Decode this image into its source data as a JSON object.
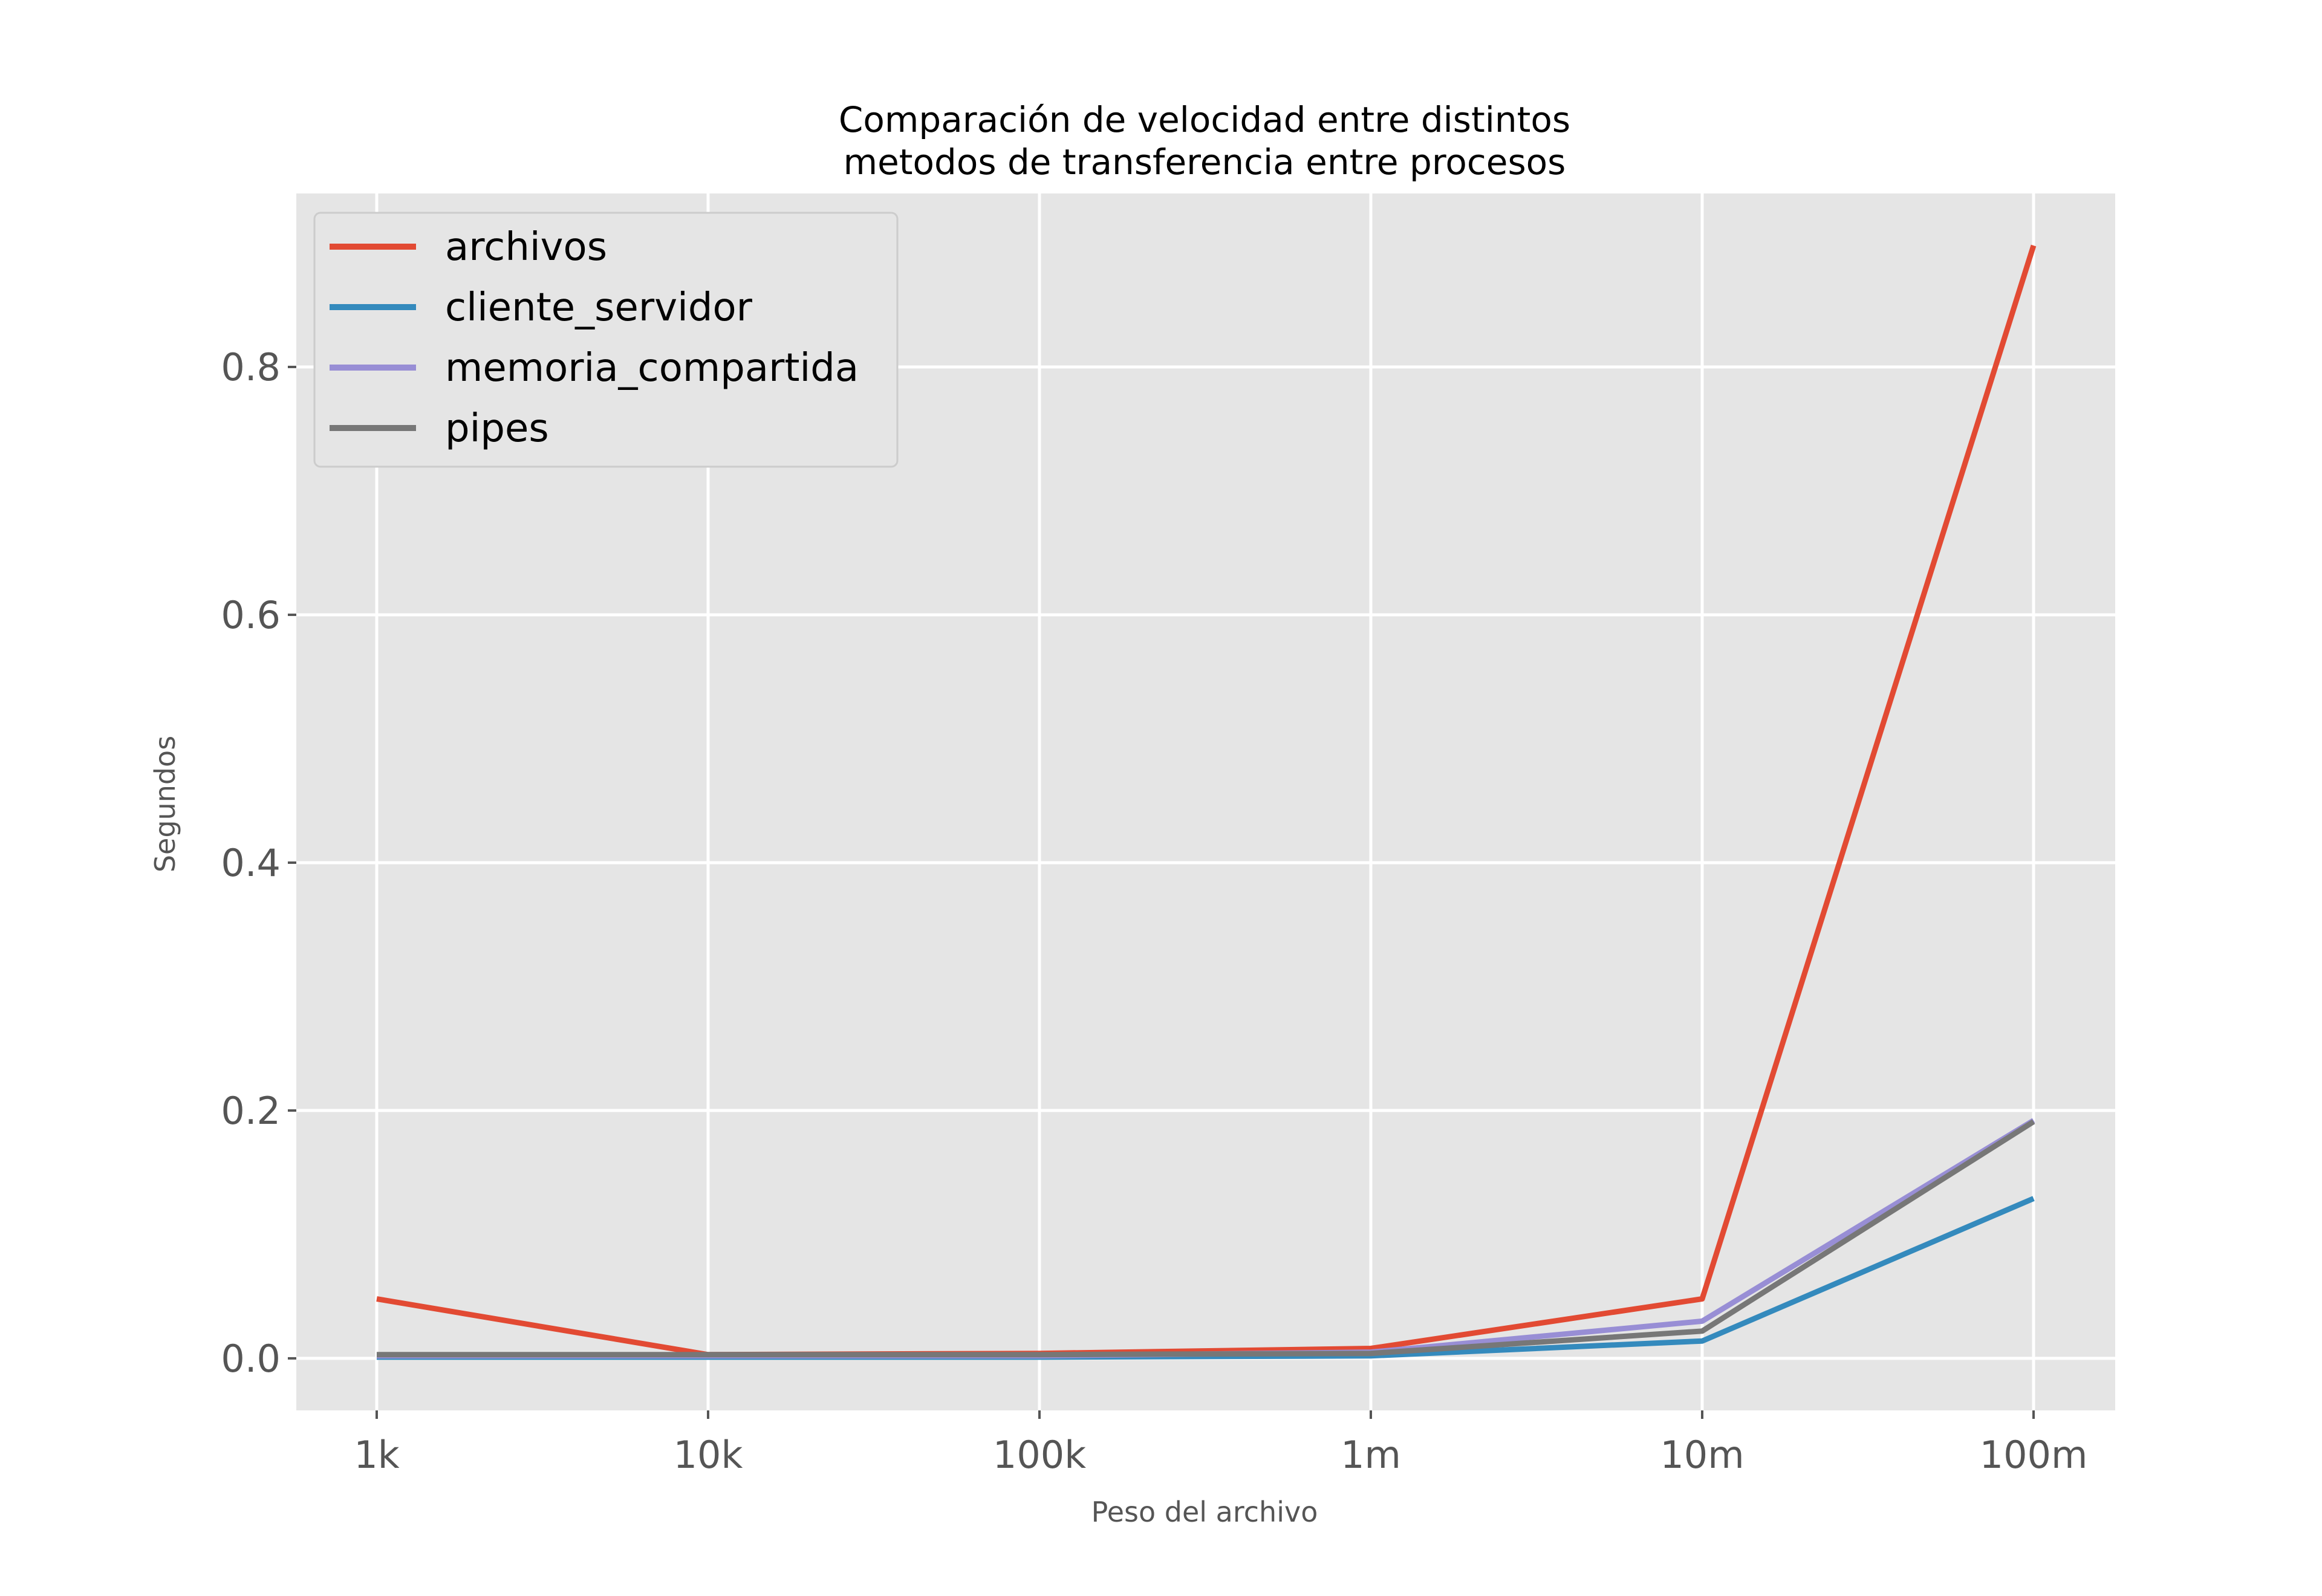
{
  "chart_data": {
    "type": "line",
    "title_lines": [
      "Comparación de velocidad entre distintos",
      "metodos de transferencia entre procesos"
    ],
    "xlabel": "Peso del archivo",
    "ylabel": "Segundos",
    "categories": [
      "1k",
      "10k",
      "100k",
      "1m",
      "10m",
      "100m"
    ],
    "ylim": [
      -0.042,
      0.94
    ],
    "yticks": [
      0.0,
      0.2,
      0.4,
      0.6,
      0.8
    ],
    "ytick_labels": [
      "0.0",
      "0.2",
      "0.4",
      "0.6",
      "0.8"
    ],
    "grid": true,
    "legend_position": "top-left",
    "background_color": "#e5e5e5",
    "grid_color": "#ffffff",
    "series": [
      {
        "name": "archivos",
        "color": "#e24a33",
        "values": [
          0.048,
          0.003,
          0.004,
          0.008,
          0.048,
          0.898
        ]
      },
      {
        "name": "cliente_servidor",
        "color": "#348abd",
        "values": [
          0.001,
          0.001,
          0.001,
          0.002,
          0.014,
          0.129
        ]
      },
      {
        "name": "memoria_compartida",
        "color": "#988ed5",
        "values": [
          0.002,
          0.002,
          0.002,
          0.005,
          0.03,
          0.192
        ]
      },
      {
        "name": "pipes",
        "color": "#777777",
        "values": [
          0.003,
          0.003,
          0.003,
          0.004,
          0.022,
          0.191
        ]
      }
    ]
  }
}
